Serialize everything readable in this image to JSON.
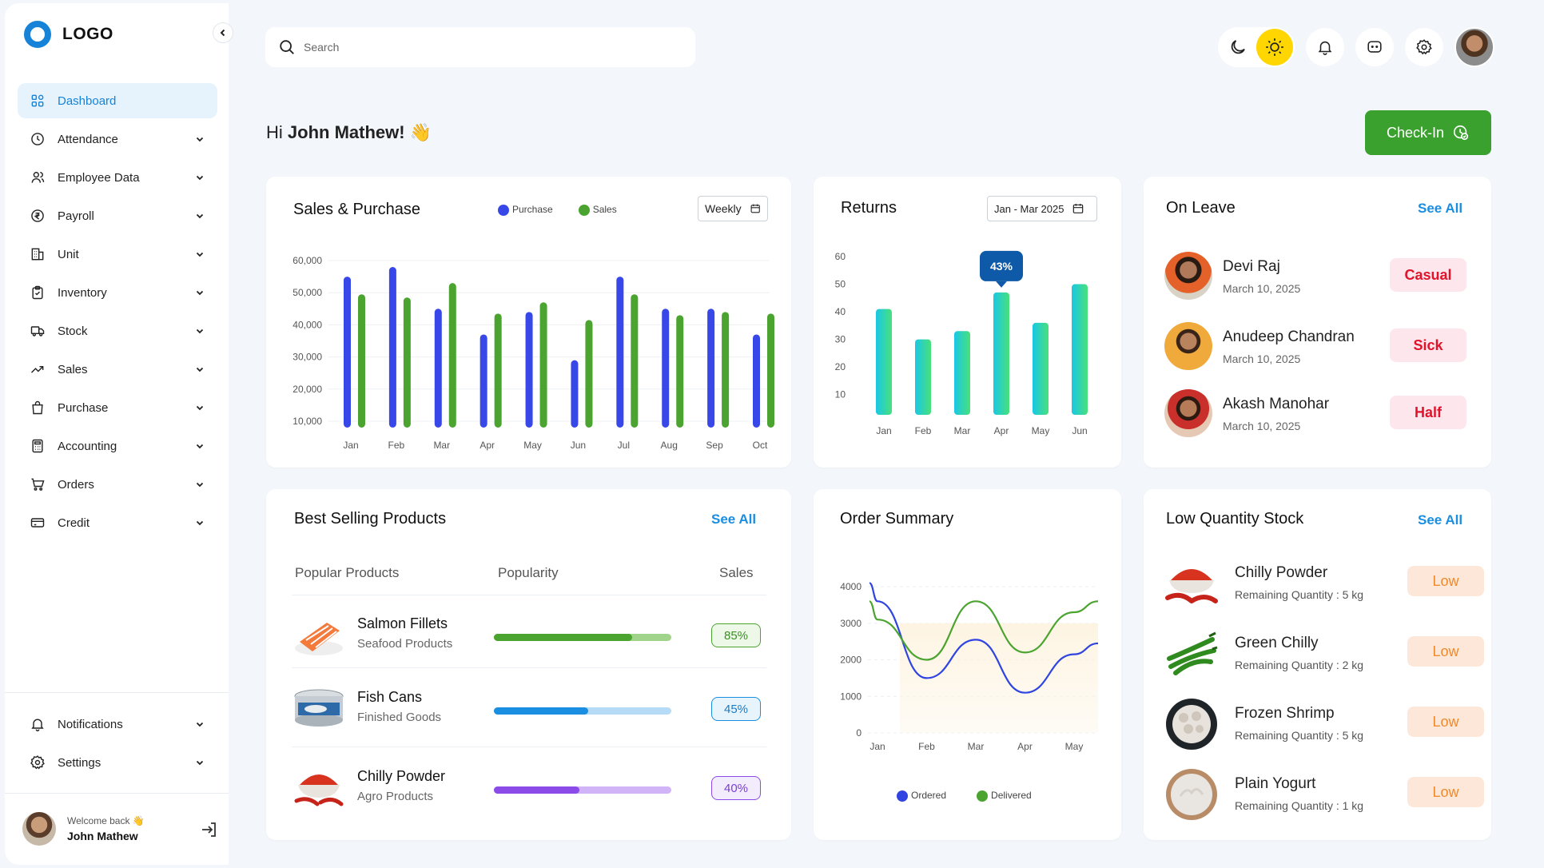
{
  "brand": {
    "logo_text": "LOGO"
  },
  "sidebar": {
    "items": [
      {
        "label": "Dashboard",
        "icon": "grid-icon",
        "active": true
      },
      {
        "label": "Attendance",
        "icon": "clock-icon"
      },
      {
        "label": "Employee Data",
        "icon": "users-icon"
      },
      {
        "label": "Payroll",
        "icon": "rupee-icon"
      },
      {
        "label": "Unit",
        "icon": "building-icon"
      },
      {
        "label": "Inventory",
        "icon": "clipboard-icon"
      },
      {
        "label": "Stock",
        "icon": "truck-icon"
      },
      {
        "label": "Sales",
        "icon": "trend-icon"
      },
      {
        "label": "Purchase",
        "icon": "bag-icon"
      },
      {
        "label": "Accounting",
        "icon": "calculator-icon"
      },
      {
        "label": "Orders",
        "icon": "cart-icon"
      },
      {
        "label": "Credit",
        "icon": "card-icon"
      }
    ],
    "bottom_items": [
      {
        "label": "Notifications",
        "icon": "bell-icon"
      },
      {
        "label": "Settings",
        "icon": "gear-icon"
      }
    ],
    "user": {
      "welcome": "Welcome back 👋",
      "name": "John Mathew"
    }
  },
  "search": {
    "placeholder": "Search"
  },
  "greeting": {
    "prefix": "Hi",
    "name": "John Mathew!",
    "emoji": "👋"
  },
  "checkin": {
    "label": "Check-In"
  },
  "sales_purchase": {
    "title": "Sales & Purchase",
    "legend": [
      "Purchase",
      "Sales"
    ],
    "period": "Weekly",
    "colors": {
      "purchase": "#3848e8",
      "sales": "#4aa42f"
    }
  },
  "returns": {
    "title": "Returns",
    "period": "Jan - Mar 2025",
    "tooltip": "43%"
  },
  "on_leave": {
    "title": "On Leave",
    "see_all": "See All",
    "people": [
      {
        "name": "Devi Raj",
        "date": "March 10, 2025",
        "type": "Casual"
      },
      {
        "name": "Anudeep Chandran",
        "date": "March 10, 2025",
        "type": "Sick"
      },
      {
        "name": "Akash Manohar",
        "date": "March 10, 2025",
        "type": "Half"
      }
    ]
  },
  "best_selling": {
    "title": "Best Selling Products",
    "see_all": "See All",
    "headers": [
      "Popular Products",
      "Popularity",
      "Sales"
    ],
    "products": [
      {
        "name": "Salmon Fillets",
        "category": "Seafood Products",
        "popularity": 0.78,
        "sales": "85%",
        "color": "#4aa42f",
        "track": "#9fd48a"
      },
      {
        "name": "Fish Cans",
        "category": "Finished Goods",
        "popularity": 0.53,
        "sales": "45%",
        "color": "#1a8ee0",
        "track": "#b6dbf6"
      },
      {
        "name": "Chilly Powder",
        "category": "Agro Products",
        "popularity": 0.48,
        "sales": "40%",
        "color": "#8b4be8",
        "track": "#d0b4f7"
      }
    ]
  },
  "order_summary": {
    "title": "Order Summary",
    "legend": [
      "Ordered",
      "Delivered"
    ]
  },
  "low_stock": {
    "title": "Low Quantity Stock",
    "see_all": "See All",
    "items": [
      {
        "name": "Chilly Powder",
        "remaining": "Remaining Quantity : 5 kg",
        "status": "Low"
      },
      {
        "name": "Green Chilly",
        "remaining": "Remaining Quantity : 2 kg",
        "status": "Low"
      },
      {
        "name": "Frozen Shrimp",
        "remaining": "Remaining Quantity : 5 kg",
        "status": "Low"
      },
      {
        "name": "Plain Yogurt",
        "remaining": "Remaining Quantity : 1 kg",
        "status": "Low"
      }
    ]
  },
  "chart_data": [
    {
      "type": "bar",
      "categories": [
        "Jan",
        "Feb",
        "Mar",
        "Apr",
        "May",
        "Jun",
        "Jul",
        "Aug",
        "Sep",
        "Oct"
      ],
      "series": [
        {
          "name": "Purchase",
          "values": [
            55000,
            58000,
            45000,
            37000,
            44000,
            29000,
            55000,
            45000,
            45000,
            37000
          ]
        },
        {
          "name": "Sales",
          "values": [
            49500,
            48500,
            53000,
            43500,
            47000,
            41500,
            49500,
            43000,
            44000,
            43500
          ]
        }
      ],
      "yticks": [
        "60,000",
        "50,000",
        "40,000",
        "30,000",
        "20,000",
        "10,000"
      ],
      "ylim": [
        10000,
        60000
      ],
      "grid": true
    },
    {
      "type": "bar",
      "categories": [
        "Jan",
        "Feb",
        "Mar",
        "Apr",
        "May",
        "Jun"
      ],
      "values": [
        41,
        30,
        33,
        47,
        36,
        50
      ],
      "yticks": [
        "60",
        "50",
        "40",
        "30",
        "20",
        "10"
      ],
      "ylim": [
        5,
        60
      ],
      "annotation": {
        "category": "Apr",
        "text": "43%"
      }
    },
    {
      "type": "line",
      "x": [
        "Jan",
        "Feb",
        "Mar",
        "Apr",
        "May"
      ],
      "series": [
        {
          "name": "Ordered",
          "values": [
            3600,
            1500,
            2550,
            1100,
            2150
          ],
          "color": "#2f44e0"
        },
        {
          "name": "Delivered",
          "values": [
            3100,
            2000,
            3600,
            2200,
            3300
          ],
          "color": "#4aa42f"
        }
      ],
      "yticks": [
        "4000",
        "3000",
        "2000",
        "1000",
        "0"
      ],
      "ylim": [
        0,
        4000
      ]
    }
  ]
}
